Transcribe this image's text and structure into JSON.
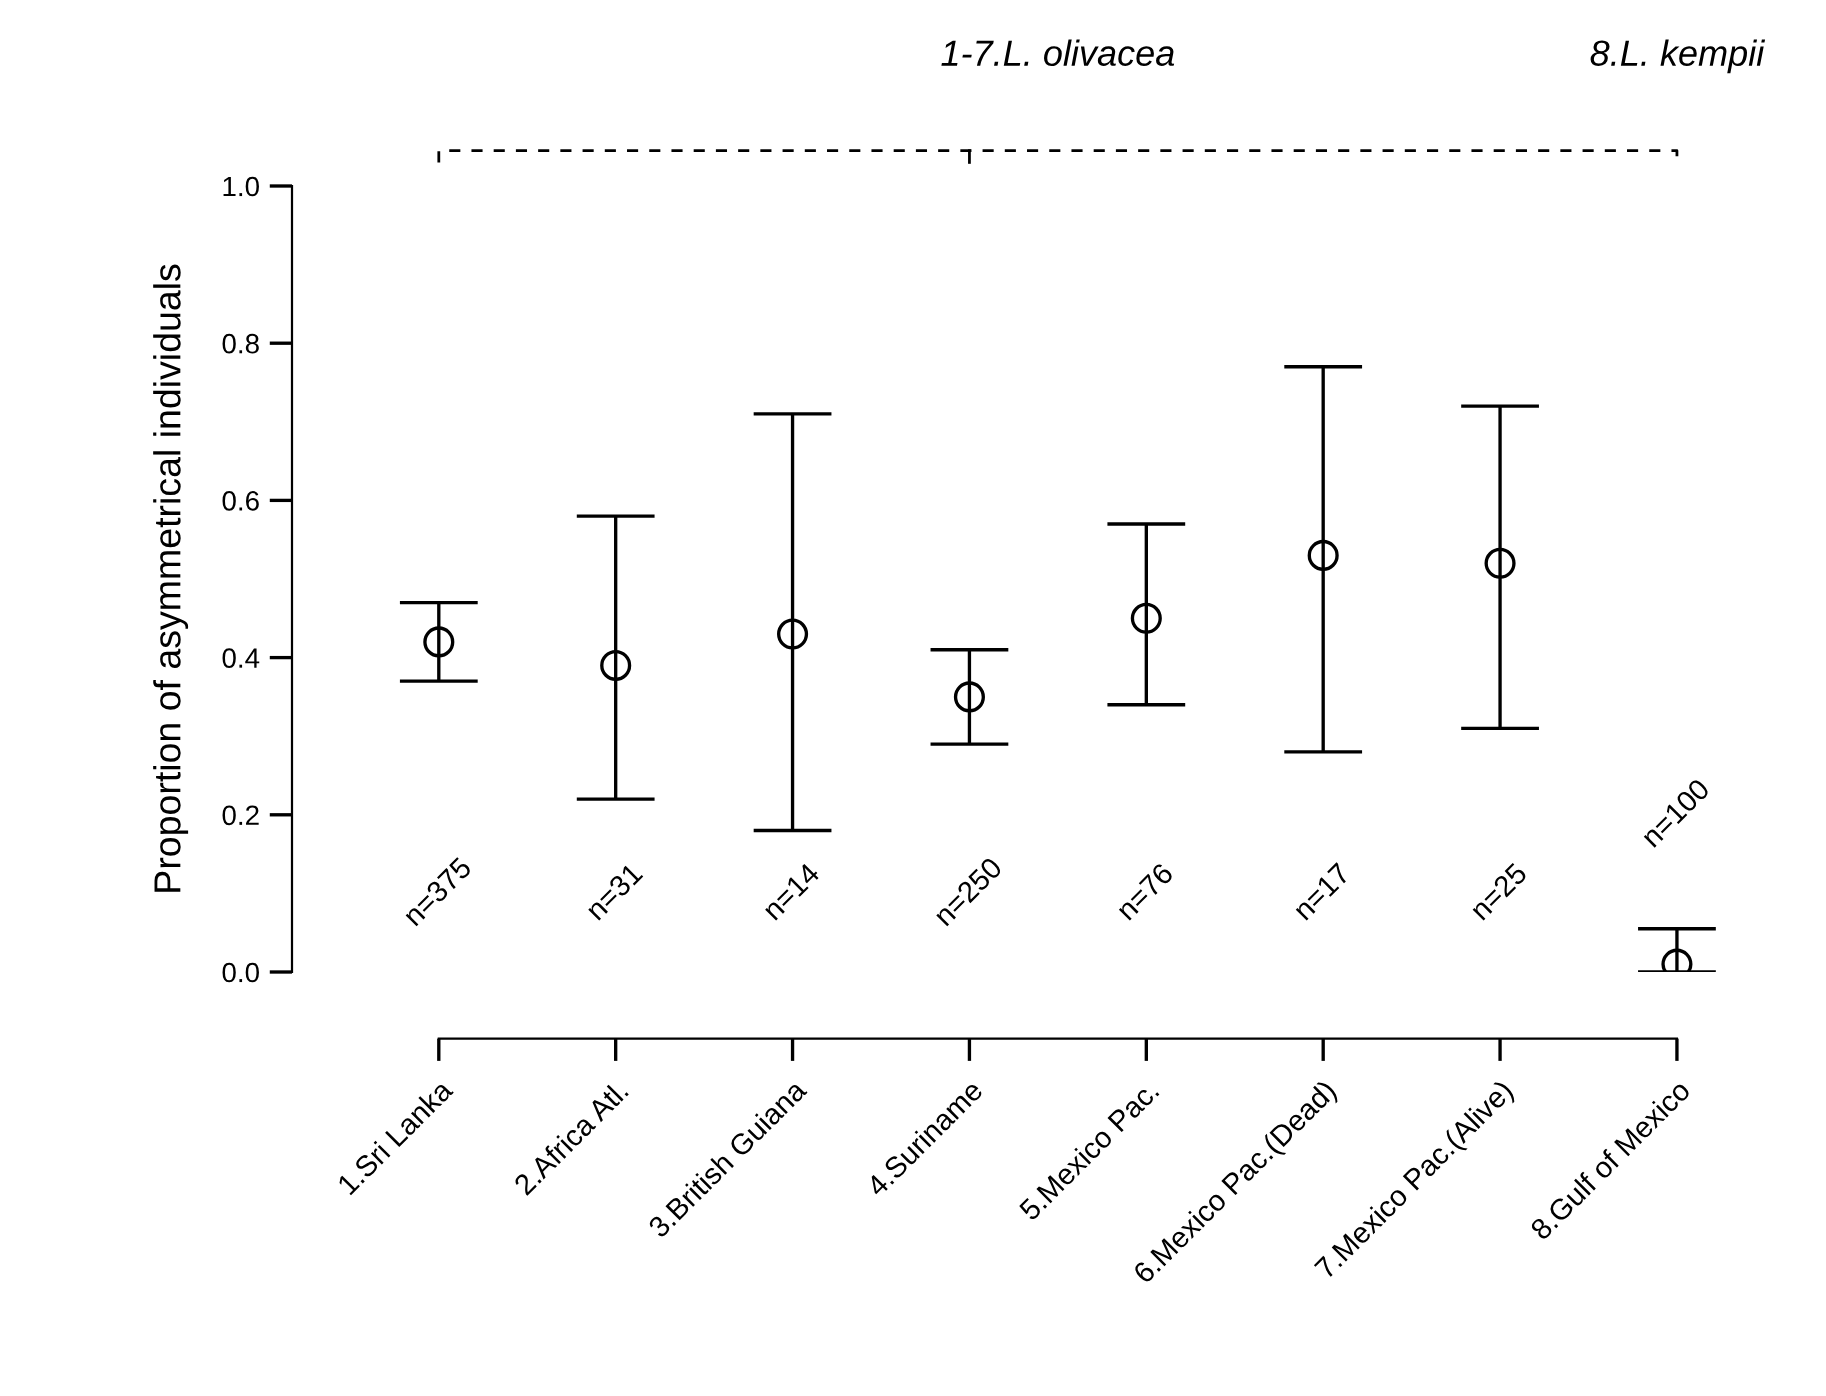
{
  "chart_data": {
    "type": "scatter",
    "ylabel": "Proportion of asymmetrical individuals",
    "categories": [
      "1.Sri Lanka",
      "2.Africa Atl.",
      "3.British Guiana",
      "4.Suriname",
      "5.Mexico Pac.",
      "6.Mexico Pac.(Dead)",
      "7.Mexico Pac.(Alive)",
      "8.Gulf of Mexico"
    ],
    "values": [
      0.42,
      0.39,
      0.43,
      0.35,
      0.45,
      0.53,
      0.52,
      0.01
    ],
    "errors": [
      [
        0.37,
        0.47
      ],
      [
        0.22,
        0.58
      ],
      [
        0.18,
        0.71
      ],
      [
        0.29,
        0.41
      ],
      [
        0.34,
        0.57
      ],
      [
        0.28,
        0.77
      ],
      [
        0.31,
        0.72
      ],
      [
        0.0,
        0.055
      ]
    ],
    "color": "#000000",
    "marker": "circle",
    "grid": false,
    "ylim": [
      0,
      1
    ],
    "yticks": [
      {
        "value": 0,
        "label": "0.0"
      },
      0.2,
      0.4,
      0.6,
      0.8,
      {
        "value": 1,
        "label": "1.0"
      }
    ],
    "annotations": [
      "1-7.L. olivacea",
      "8.L. kempii",
      "n=375",
      "n=31",
      "n=14",
      "n=250",
      "n=76",
      "n=17",
      "n=25",
      "n=100"
    ]
  }
}
